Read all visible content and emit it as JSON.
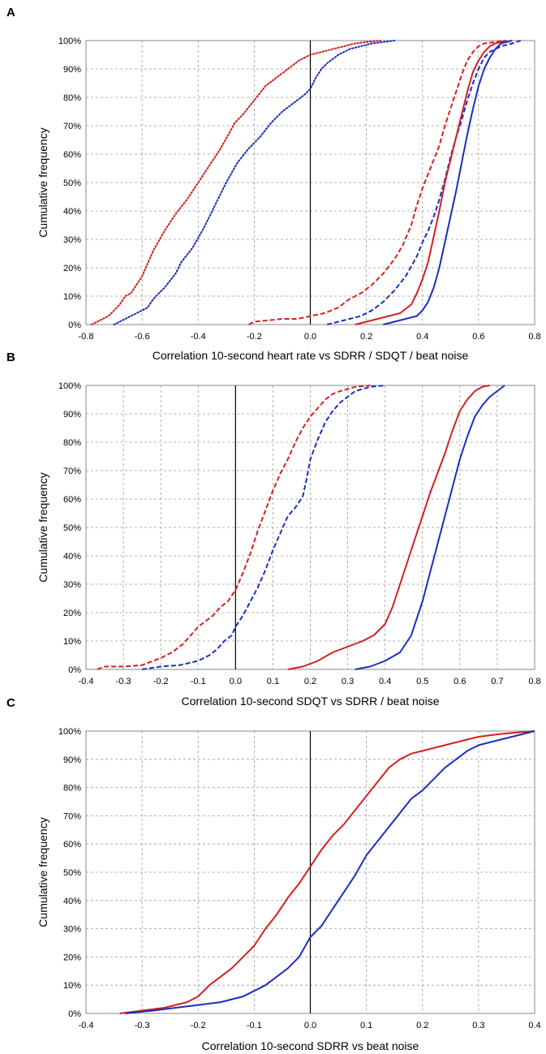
{
  "chart_data": [
    {
      "panel": "A",
      "type": "line",
      "xlabel": "Correlation 10-second heart rate vs SDRR / SDQT / beat noise",
      "ylabel": "Cumulative frequency",
      "xlim": [
        -0.8,
        0.8
      ],
      "xticks": [
        -0.8,
        -0.6,
        -0.4,
        -0.2,
        0.0,
        0.2,
        0.4,
        0.6,
        0.8
      ],
      "xtick_labels": [
        "-0.8",
        "-0.6",
        "-0.4",
        "-0.2",
        "0.0",
        "0.2",
        "0.4",
        "0.6",
        "0.8"
      ],
      "yticks": [
        0,
        10,
        20,
        30,
        40,
        50,
        60,
        70,
        80,
        90,
        100
      ],
      "ytick_labels": [
        "0%",
        "10%",
        "20%",
        "30%",
        "40%",
        "50%",
        "60%",
        "70%",
        "80%",
        "90%",
        "100%"
      ],
      "series": [
        {
          "color": "#d42020",
          "style": "dotted",
          "x": [
            -0.78,
            -0.72,
            -0.68,
            -0.66,
            -0.64,
            -0.6,
            -0.56,
            -0.52,
            -0.48,
            -0.44,
            -0.4,
            -0.36,
            -0.32,
            -0.28,
            -0.27,
            -0.24,
            -0.2,
            -0.16,
            -0.12,
            -0.08,
            -0.04,
            0.0,
            0.04,
            0.08,
            0.12,
            0.16,
            0.2,
            0.25
          ],
          "y": [
            0,
            3,
            7,
            10,
            11,
            17,
            26,
            33,
            39,
            44,
            50,
            56,
            62,
            69,
            71,
            74,
            79,
            84,
            87,
            90,
            93,
            95,
            96,
            97,
            98,
            99,
            99.5,
            100
          ]
        },
        {
          "color": "#1a2fc0",
          "style": "dotted",
          "x": [
            -0.7,
            -0.66,
            -0.62,
            -0.58,
            -0.56,
            -0.52,
            -0.48,
            -0.46,
            -0.42,
            -0.38,
            -0.34,
            -0.3,
            -0.26,
            -0.22,
            -0.18,
            -0.14,
            -0.1,
            -0.06,
            -0.02,
            0.0,
            0.02,
            0.04,
            0.06,
            0.1,
            0.14,
            0.18,
            0.22,
            0.26,
            0.3
          ],
          "y": [
            0,
            2,
            4,
            6,
            9,
            13,
            18,
            22,
            27,
            34,
            42,
            50,
            57,
            62,
            66,
            71,
            75,
            78,
            81,
            83,
            87,
            90,
            92,
            95,
            97,
            98,
            99,
            99.5,
            100
          ]
        },
        {
          "color": "#d42020",
          "style": "dashed",
          "x": [
            -0.22,
            -0.2,
            -0.15,
            -0.1,
            -0.05,
            -0.02,
            0.0,
            0.05,
            0.1,
            0.14,
            0.18,
            0.22,
            0.26,
            0.3,
            0.33,
            0.36,
            0.38,
            0.4,
            0.42,
            0.44,
            0.46,
            0.48,
            0.5,
            0.52,
            0.54,
            0.56,
            0.58,
            0.6,
            0.62,
            0.66,
            0.7
          ],
          "y": [
            0,
            1,
            1.5,
            2,
            2,
            2.5,
            3,
            4,
            6,
            9,
            11,
            14,
            18,
            23,
            28,
            35,
            42,
            48,
            53,
            58,
            63,
            70,
            76,
            82,
            88,
            93,
            96,
            98,
            99,
            99.5,
            100
          ]
        },
        {
          "color": "#1a2fc0",
          "style": "dashed",
          "x": [
            0.06,
            0.1,
            0.14,
            0.18,
            0.22,
            0.26,
            0.3,
            0.34,
            0.38,
            0.4,
            0.42,
            0.44,
            0.46,
            0.48,
            0.5,
            0.52,
            0.54,
            0.56,
            0.58,
            0.6,
            0.62,
            0.64,
            0.68,
            0.72,
            0.75
          ],
          "y": [
            0,
            1,
            2,
            3,
            5,
            8,
            12,
            17,
            24,
            29,
            33,
            38,
            44,
            51,
            59,
            66,
            72,
            79,
            85,
            90,
            94,
            96,
            98,
            99,
            100
          ]
        },
        {
          "color": "#d42020",
          "style": "solid",
          "x": [
            0.16,
            0.2,
            0.24,
            0.28,
            0.32,
            0.36,
            0.38,
            0.4,
            0.42,
            0.44,
            0.46,
            0.48,
            0.5,
            0.52,
            0.54,
            0.56,
            0.58,
            0.6,
            0.62,
            0.64,
            0.66,
            0.68,
            0.7
          ],
          "y": [
            0,
            1,
            2,
            3,
            4,
            7,
            11,
            16,
            22,
            31,
            40,
            50,
            58,
            66,
            74,
            82,
            89,
            93,
            96,
            98,
            99,
            99.5,
            100
          ]
        },
        {
          "color": "#1a2fc0",
          "style": "solid",
          "x": [
            0.26,
            0.3,
            0.34,
            0.38,
            0.4,
            0.42,
            0.44,
            0.46,
            0.48,
            0.5,
            0.52,
            0.54,
            0.56,
            0.58,
            0.6,
            0.62,
            0.64,
            0.66,
            0.68,
            0.7,
            0.72
          ],
          "y": [
            0,
            1,
            2,
            3,
            5,
            8,
            13,
            20,
            29,
            38,
            47,
            57,
            67,
            76,
            84,
            90,
            94,
            97,
            99,
            99.5,
            100
          ]
        }
      ]
    },
    {
      "panel": "B",
      "type": "line",
      "xlabel": "Correlation 10-second SDQT vs SDRR / beat noise",
      "ylabel": "Cumulative frequency",
      "xlim": [
        -0.4,
        0.8
      ],
      "xticks": [
        -0.4,
        -0.3,
        -0.2,
        -0.1,
        0.0,
        0.1,
        0.2,
        0.3,
        0.4,
        0.5,
        0.6,
        0.7,
        0.8
      ],
      "xtick_labels": [
        "-0.4",
        "-0.3",
        "-0.2",
        "-0.1",
        "0.0",
        "0.1",
        "0.2",
        "0.3",
        "0.4",
        "0.5",
        "0.6",
        "0.7",
        "0.8"
      ],
      "yticks": [
        0,
        10,
        20,
        30,
        40,
        50,
        60,
        70,
        80,
        90,
        100
      ],
      "ytick_labels": [
        "0%",
        "10%",
        "20%",
        "30%",
        "40%",
        "50%",
        "60%",
        "70%",
        "80%",
        "90%",
        "100%"
      ],
      "series": [
        {
          "color": "#d42020",
          "style": "dashed",
          "x": [
            -0.37,
            -0.35,
            -0.3,
            -0.25,
            -0.22,
            -0.2,
            -0.17,
            -0.14,
            -0.12,
            -0.1,
            -0.08,
            -0.06,
            -0.04,
            -0.02,
            0.0,
            0.02,
            0.04,
            0.06,
            0.08,
            0.1,
            0.12,
            0.14,
            0.16,
            0.18,
            0.2,
            0.22,
            0.24,
            0.26,
            0.28,
            0.32,
            0.36
          ],
          "y": [
            0,
            1,
            1,
            1.5,
            3,
            4,
            6,
            9,
            12,
            15,
            17,
            19,
            22,
            24,
            28,
            34,
            41,
            49,
            56,
            63,
            69,
            74,
            80,
            85,
            89,
            92,
            95,
            97,
            98,
            99.5,
            100
          ]
        },
        {
          "color": "#1a2fc0",
          "style": "dashed",
          "x": [
            -0.25,
            -0.2,
            -0.15,
            -0.1,
            -0.07,
            -0.05,
            -0.03,
            -0.01,
            0.0,
            0.02,
            0.04,
            0.06,
            0.08,
            0.1,
            0.12,
            0.14,
            0.16,
            0.18,
            0.19,
            0.2,
            0.22,
            0.24,
            0.26,
            0.28,
            0.3,
            0.32,
            0.36,
            0.4
          ],
          "y": [
            0,
            1,
            1.5,
            3,
            5,
            7,
            10,
            12,
            15,
            19,
            24,
            29,
            35,
            42,
            48,
            54,
            57,
            61,
            67,
            74,
            81,
            87,
            91,
            94,
            96,
            98,
            99.5,
            100
          ]
        },
        {
          "color": "#d42020",
          "style": "solid",
          "x": [
            0.14,
            0.18,
            0.22,
            0.26,
            0.3,
            0.34,
            0.37,
            0.4,
            0.42,
            0.44,
            0.46,
            0.48,
            0.5,
            0.52,
            0.54,
            0.56,
            0.58,
            0.6,
            0.62,
            0.64,
            0.66,
            0.68
          ],
          "y": [
            0,
            1,
            3,
            6,
            8,
            10,
            12,
            16,
            22,
            30,
            38,
            46,
            54,
            62,
            69,
            76,
            84,
            91,
            95,
            98,
            99.5,
            100
          ]
        },
        {
          "color": "#1a2fc0",
          "style": "solid",
          "x": [
            0.32,
            0.36,
            0.4,
            0.44,
            0.47,
            0.5,
            0.52,
            0.54,
            0.56,
            0.58,
            0.6,
            0.62,
            0.64,
            0.66,
            0.68,
            0.7,
            0.72
          ],
          "y": [
            0,
            1,
            3,
            6,
            12,
            24,
            34,
            44,
            54,
            64,
            74,
            82,
            89,
            93,
            96,
            98,
            100
          ]
        }
      ]
    },
    {
      "panel": "C",
      "type": "line",
      "xlabel": "Correlation 10-second SDRR vs beat noise",
      "ylabel": "Cumulative frequency",
      "xlim": [
        -0.4,
        0.4
      ],
      "xticks": [
        -0.4,
        -0.3,
        -0.2,
        -0.1,
        0.0,
        0.1,
        0.2,
        0.3,
        0.4
      ],
      "xtick_labels": [
        "-0.4",
        "-0.3",
        "-0.2",
        "-0.1",
        "0.0",
        "0.1",
        "0.2",
        "0.3",
        "0.4"
      ],
      "yticks": [
        0,
        10,
        20,
        30,
        40,
        50,
        60,
        70,
        80,
        90,
        100
      ],
      "ytick_labels": [
        "0%",
        "10%",
        "20%",
        "30%",
        "40%",
        "50%",
        "60%",
        "70%",
        "80%",
        "90%",
        "100%"
      ],
      "series": [
        {
          "color": "#d42020",
          "style": "solid",
          "x": [
            -0.34,
            -0.3,
            -0.26,
            -0.22,
            -0.2,
            -0.18,
            -0.16,
            -0.14,
            -0.12,
            -0.1,
            -0.08,
            -0.06,
            -0.04,
            -0.02,
            0.0,
            0.02,
            0.04,
            0.06,
            0.08,
            0.1,
            0.12,
            0.14,
            0.16,
            0.18,
            0.2,
            0.22,
            0.24,
            0.26,
            0.28,
            0.3,
            0.34,
            0.4
          ],
          "y": [
            0,
            1,
            2,
            4,
            6,
            10,
            13,
            16,
            20,
            24,
            30,
            35,
            41,
            46,
            52,
            58,
            63,
            67,
            72,
            77,
            82,
            87,
            90,
            92,
            93,
            94,
            95,
            96,
            97,
            98,
            99,
            100
          ]
        },
        {
          "color": "#1a2fc0",
          "style": "solid",
          "x": [
            -0.33,
            -0.28,
            -0.24,
            -0.2,
            -0.16,
            -0.12,
            -0.1,
            -0.08,
            -0.06,
            -0.04,
            -0.02,
            0.0,
            0.02,
            0.04,
            0.06,
            0.08,
            0.1,
            0.12,
            0.14,
            0.16,
            0.18,
            0.2,
            0.22,
            0.24,
            0.26,
            0.28,
            0.3,
            0.34,
            0.38,
            0.4
          ],
          "y": [
            0,
            1,
            2,
            3,
            4,
            6,
            8,
            10,
            13,
            16,
            20,
            27,
            31,
            37,
            43,
            49,
            56,
            61,
            66,
            71,
            76,
            79,
            83,
            87,
            90,
            93,
            95,
            97,
            99,
            100
          ]
        }
      ]
    }
  ]
}
